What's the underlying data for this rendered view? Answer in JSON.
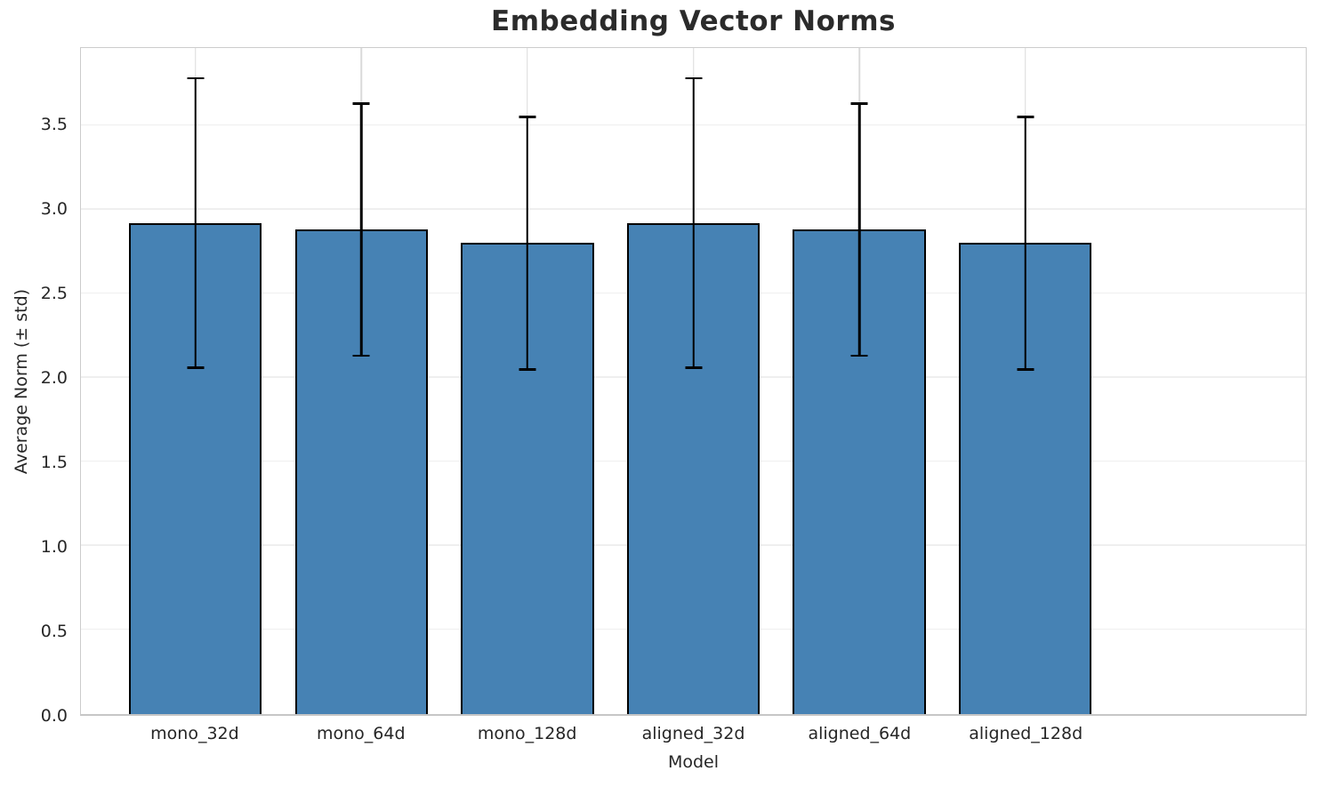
{
  "title": "Embedding Vector Norms",
  "colors": {
    "bar_fill": "#4682b4",
    "bar_edge": "#000000",
    "error_bar": "#000000",
    "grid_horizontal": "#efefef",
    "grid_vertical": "#dadada",
    "spine": "#cccccc",
    "tick_text": "#262626",
    "title_text": "#2b2b2b"
  },
  "chart_data": {
    "type": "bar",
    "title": "Embedding Vector Norms",
    "xlabel": "Model",
    "ylabel": "Average Norm (± std)",
    "categories": [
      "mono_32d",
      "mono_64d",
      "mono_128d",
      "aligned_32d",
      "aligned_64d",
      "aligned_128d"
    ],
    "values": [
      2.92,
      2.88,
      2.8,
      2.92,
      2.88,
      2.8
    ],
    "errors": [
      0.86,
      0.75,
      0.75,
      0.86,
      0.75,
      0.75
    ],
    "error_tops": [
      3.78,
      3.63,
      3.55,
      3.78,
      3.63,
      3.55
    ],
    "error_bottoms": [
      2.06,
      2.13,
      2.05,
      2.06,
      2.13,
      2.05
    ],
    "yticks": [
      "0.0",
      "0.5",
      "1.0",
      "1.5",
      "2.0",
      "2.5",
      "3.0",
      "3.5"
    ],
    "ytick_values": [
      0.0,
      0.5,
      1.0,
      1.5,
      2.0,
      2.5,
      3.0,
      3.5
    ],
    "ylim": [
      0,
      3.96
    ],
    "grid": "both",
    "legend": "none",
    "bar_width_fraction": 0.8
  }
}
